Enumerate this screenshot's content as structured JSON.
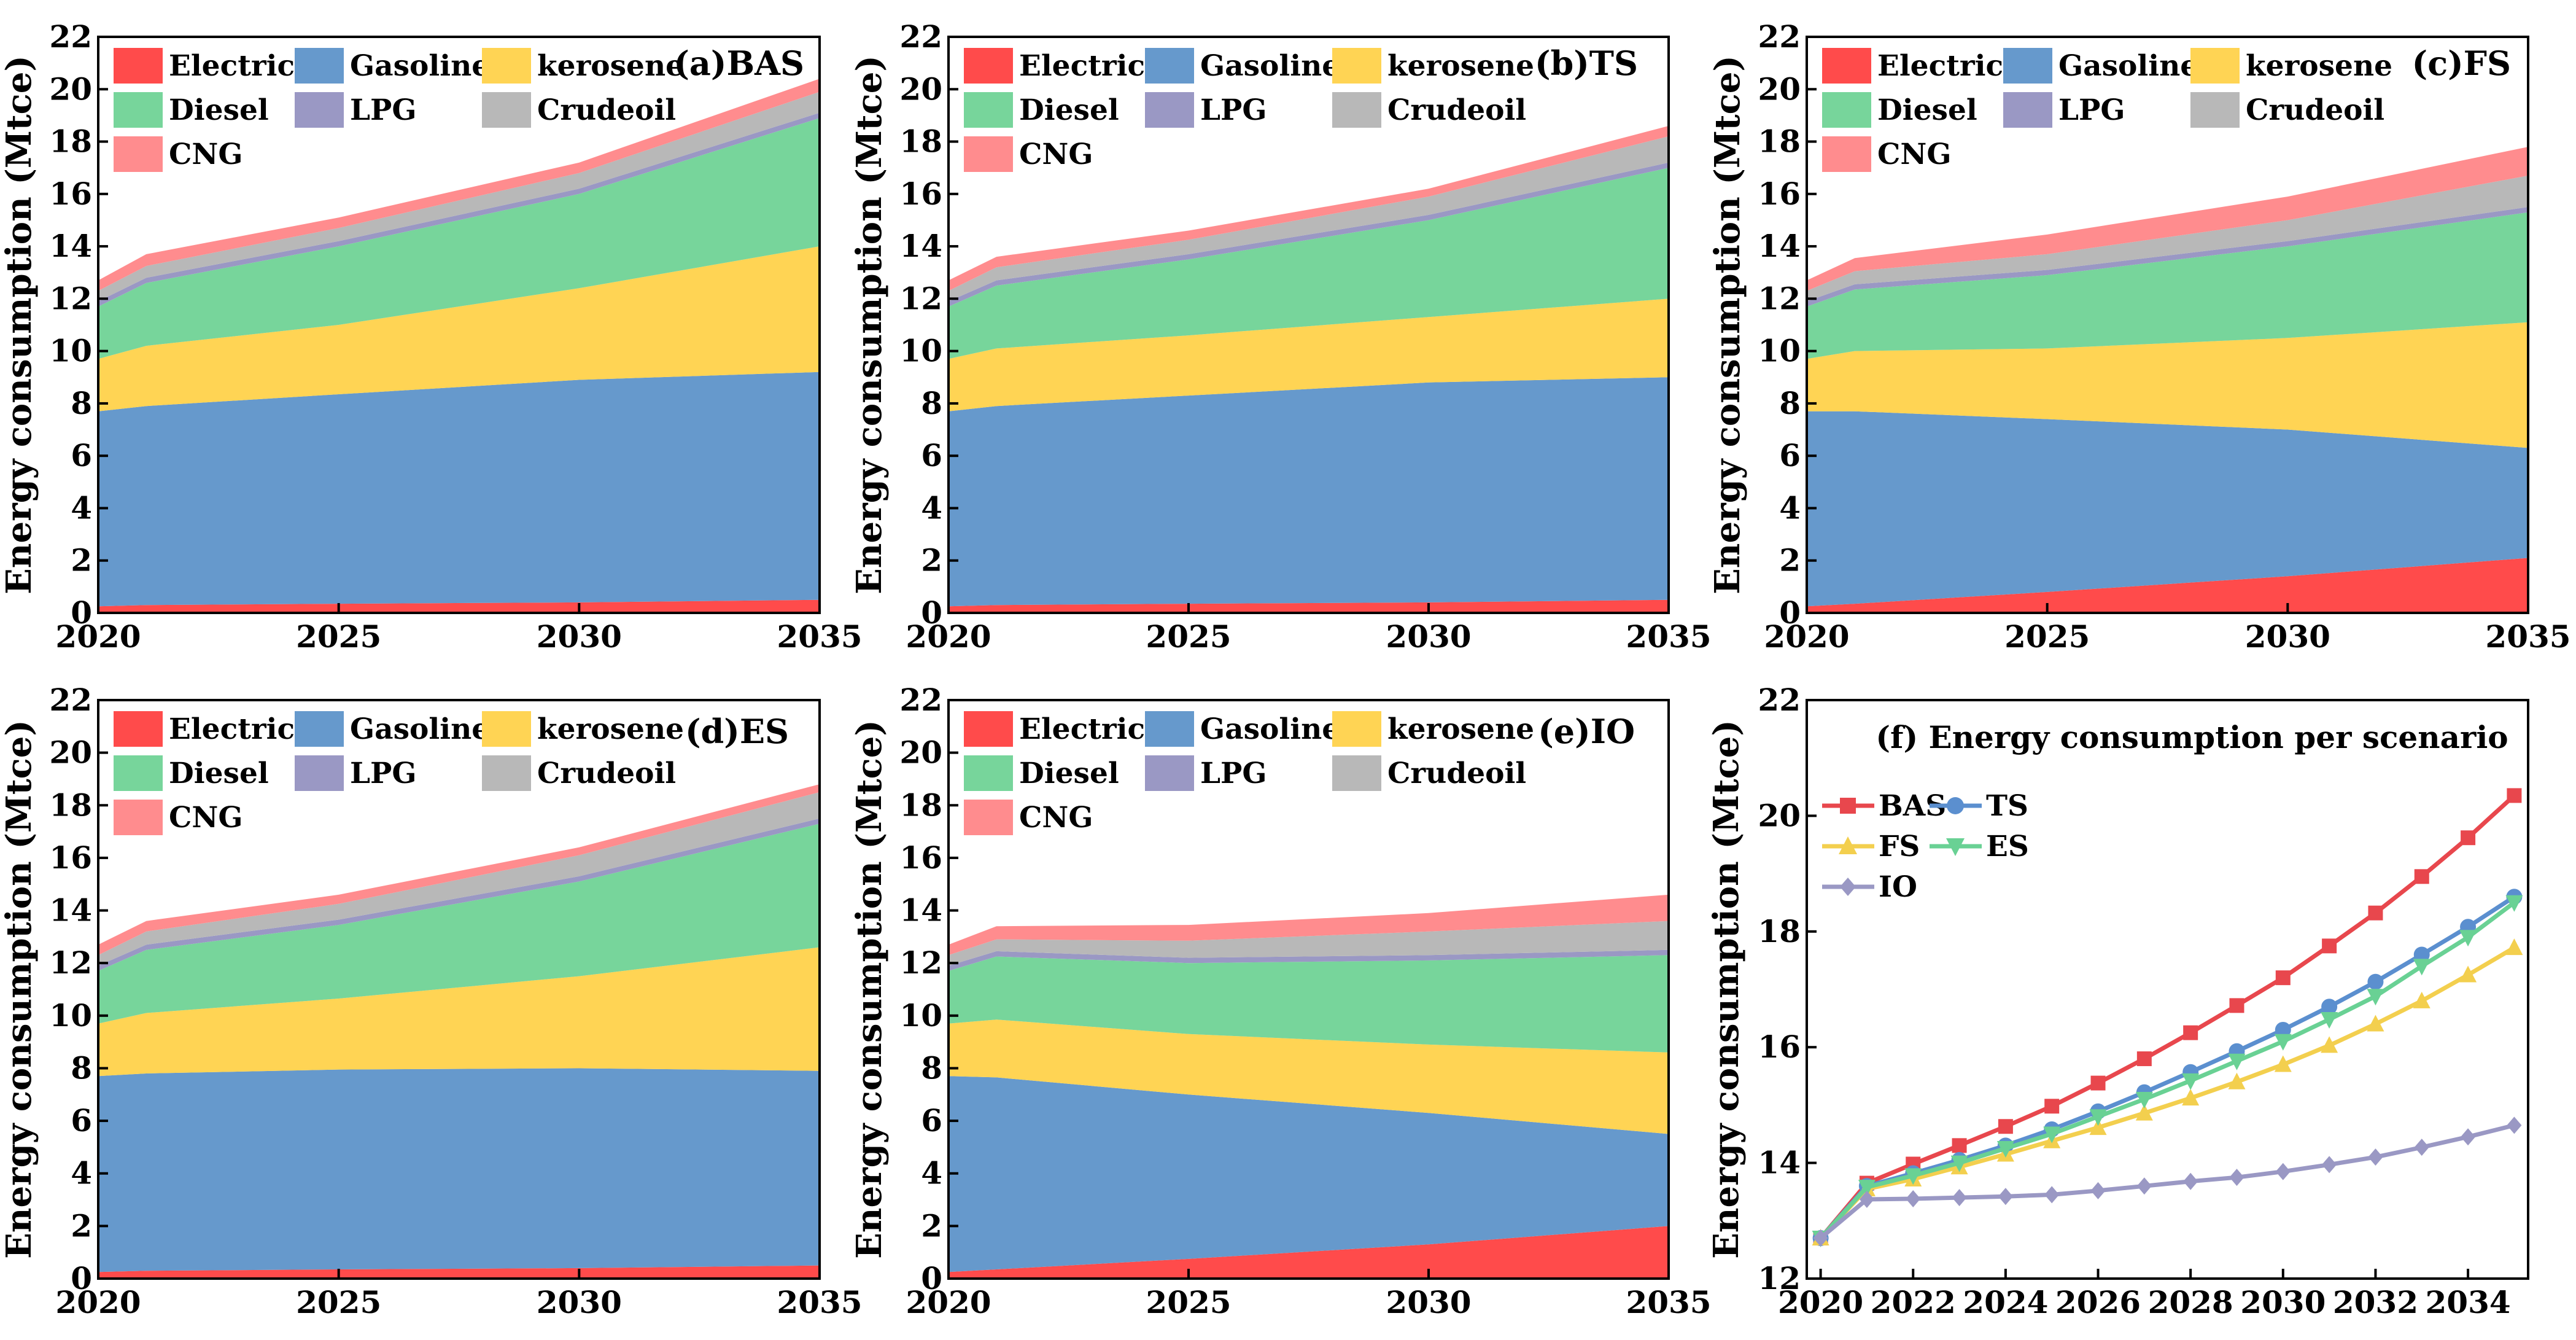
{
  "figure": {
    "colors": {
      "Electricity": "#ff4b4b",
      "Gasoline": "#6699cc",
      "kerosene": "#ffd454",
      "Diesel": "#77d59b",
      "LPG": "#9a98c4",
      "Crudeoil": "#b8b8b8",
      "CNG": "#ff8c8e"
    }
  },
  "chart_data": [
    {
      "id": "a",
      "type": "area",
      "stacked": true,
      "title": "(a)BAS",
      "ylabel": "Energy consumption (Mtce)",
      "xlabel": "",
      "xlim": [
        2020,
        2035
      ],
      "ylim": [
        0,
        22
      ],
      "xticks": [
        "2020",
        "2025",
        "2030",
        "2035"
      ],
      "yticks": [
        "0",
        "2",
        "4",
        "6",
        "8",
        "10",
        "12",
        "14",
        "16",
        "18",
        "20",
        "22"
      ],
      "legend_rows": [
        [
          "Electricity",
          "Gasoline",
          "kerosene"
        ],
        [
          "Diesel",
          "LPG",
          "Crudeoil"
        ],
        [
          "CNG"
        ]
      ],
      "x": [
        2020,
        2021,
        2025,
        2030,
        2035
      ],
      "series": [
        {
          "name": "Electricity",
          "values": [
            0.25,
            0.3,
            0.35,
            0.4,
            0.5
          ]
        },
        {
          "name": "Gasoline",
          "values": [
            7.45,
            7.6,
            8.0,
            8.5,
            8.7
          ]
        },
        {
          "name": "kerosene",
          "values": [
            2.0,
            2.3,
            2.65,
            3.5,
            4.8
          ]
        },
        {
          "name": "Diesel",
          "values": [
            2.0,
            2.4,
            3.0,
            3.6,
            4.9
          ]
        },
        {
          "name": "LPG",
          "values": [
            0.2,
            0.2,
            0.2,
            0.2,
            0.2
          ]
        },
        {
          "name": "Crudeoil",
          "values": [
            0.4,
            0.45,
            0.5,
            0.6,
            0.8
          ]
        },
        {
          "name": "CNG",
          "values": [
            0.4,
            0.45,
            0.4,
            0.4,
            0.5
          ]
        }
      ]
    },
    {
      "id": "b",
      "type": "area",
      "stacked": true,
      "title": "(b)TS",
      "ylabel": "Energy consumption (Mtce)",
      "xlabel": "",
      "xlim": [
        2020,
        2035
      ],
      "ylim": [
        0,
        22
      ],
      "xticks": [
        "2020",
        "2025",
        "2030",
        "2035"
      ],
      "yticks": [
        "0",
        "2",
        "4",
        "6",
        "8",
        "10",
        "12",
        "14",
        "16",
        "18",
        "20",
        "22"
      ],
      "legend_rows": [
        [
          "Electricity",
          "Gasoline",
          "kerosene"
        ],
        [
          "Diesel",
          "LPG",
          "Crudeoil"
        ],
        [
          "CNG"
        ]
      ],
      "x": [
        2020,
        2021,
        2025,
        2030,
        2035
      ],
      "series": [
        {
          "name": "Electricity",
          "values": [
            0.25,
            0.3,
            0.35,
            0.4,
            0.5
          ]
        },
        {
          "name": "Gasoline",
          "values": [
            7.45,
            7.6,
            7.95,
            8.4,
            8.5
          ]
        },
        {
          "name": "kerosene",
          "values": [
            2.0,
            2.2,
            2.3,
            2.5,
            3.0
          ]
        },
        {
          "name": "Diesel",
          "values": [
            2.0,
            2.4,
            2.9,
            3.7,
            5.0
          ]
        },
        {
          "name": "LPG",
          "values": [
            0.2,
            0.2,
            0.2,
            0.2,
            0.2
          ]
        },
        {
          "name": "Crudeoil",
          "values": [
            0.4,
            0.5,
            0.55,
            0.7,
            1.0
          ]
        },
        {
          "name": "CNG",
          "values": [
            0.4,
            0.4,
            0.35,
            0.3,
            0.4
          ]
        }
      ]
    },
    {
      "id": "c",
      "type": "area",
      "stacked": true,
      "title": "(c)FS",
      "ylabel": "Energy consumption (Mtce)",
      "xlabel": "",
      "xlim": [
        2020,
        2035
      ],
      "ylim": [
        0,
        22
      ],
      "xticks": [
        "2020",
        "2025",
        "2030",
        "2035"
      ],
      "yticks": [
        "0",
        "2",
        "4",
        "6",
        "8",
        "10",
        "12",
        "14",
        "16",
        "18",
        "20",
        "22"
      ],
      "legend_rows": [
        [
          "Electricity",
          "Gasoline",
          "kerosene"
        ],
        [
          "Diesel",
          "LPG",
          "Crudeoil"
        ],
        [
          "CNG"
        ]
      ],
      "x": [
        2020,
        2021,
        2025,
        2030,
        2035
      ],
      "series": [
        {
          "name": "Electricity",
          "values": [
            0.25,
            0.35,
            0.8,
            1.4,
            2.1
          ]
        },
        {
          "name": "Gasoline",
          "values": [
            7.45,
            7.35,
            6.6,
            5.6,
            4.2
          ]
        },
        {
          "name": "kerosene",
          "values": [
            2.0,
            2.3,
            2.7,
            3.5,
            4.8
          ]
        },
        {
          "name": "Diesel",
          "values": [
            2.0,
            2.35,
            2.8,
            3.5,
            4.2
          ]
        },
        {
          "name": "LPG",
          "values": [
            0.2,
            0.2,
            0.2,
            0.2,
            0.2
          ]
        },
        {
          "name": "Crudeoil",
          "values": [
            0.4,
            0.5,
            0.6,
            0.8,
            1.2
          ]
        },
        {
          "name": "CNG",
          "values": [
            0.4,
            0.5,
            0.75,
            0.9,
            1.1
          ]
        }
      ]
    },
    {
      "id": "d",
      "type": "area",
      "stacked": true,
      "title": "(d)ES",
      "ylabel": "Energy consumption (Mtce)",
      "xlabel": "",
      "xlim": [
        2020,
        2035
      ],
      "ylim": [
        0,
        22
      ],
      "xticks": [
        "2020",
        "2025",
        "2030",
        "2035"
      ],
      "yticks": [
        "0",
        "2",
        "4",
        "6",
        "8",
        "10",
        "12",
        "14",
        "16",
        "18",
        "20",
        "22"
      ],
      "legend_rows": [
        [
          "Electricity",
          "Gasoline",
          "kerosene"
        ],
        [
          "Diesel",
          "LPG",
          "Crudeoil"
        ],
        [
          "CNG"
        ]
      ],
      "x": [
        2020,
        2021,
        2025,
        2030,
        2035
      ],
      "series": [
        {
          "name": "Electricity",
          "values": [
            0.25,
            0.3,
            0.35,
            0.4,
            0.5
          ]
        },
        {
          "name": "Gasoline",
          "values": [
            7.45,
            7.5,
            7.6,
            7.6,
            7.4
          ]
        },
        {
          "name": "kerosene",
          "values": [
            2.0,
            2.3,
            2.7,
            3.5,
            4.7
          ]
        },
        {
          "name": "Diesel",
          "values": [
            2.0,
            2.4,
            2.8,
            3.6,
            4.7
          ]
        },
        {
          "name": "LPG",
          "values": [
            0.2,
            0.2,
            0.2,
            0.2,
            0.2
          ]
        },
        {
          "name": "Crudeoil",
          "values": [
            0.4,
            0.5,
            0.6,
            0.8,
            1.0
          ]
        },
        {
          "name": "CNG",
          "values": [
            0.4,
            0.4,
            0.35,
            0.3,
            0.3
          ]
        }
      ]
    },
    {
      "id": "e",
      "type": "area",
      "stacked": true,
      "title": "(e)IO",
      "ylabel": "Energy consumption (Mtce)",
      "xlabel": "",
      "xlim": [
        2020,
        2035
      ],
      "ylim": [
        0,
        22
      ],
      "xticks": [
        "2020",
        "2025",
        "2030",
        "2035"
      ],
      "yticks": [
        "0",
        "2",
        "4",
        "6",
        "8",
        "10",
        "12",
        "14",
        "16",
        "18",
        "20",
        "22"
      ],
      "legend_rows": [
        [
          "Electricity",
          "Gasoline",
          "kerosene"
        ],
        [
          "Diesel",
          "LPG",
          "Crudeoil"
        ],
        [
          "CNG"
        ]
      ],
      "x": [
        2020,
        2021,
        2025,
        2030,
        2035
      ],
      "series": [
        {
          "name": "Electricity",
          "values": [
            0.25,
            0.35,
            0.75,
            1.3,
            2.0
          ]
        },
        {
          "name": "Gasoline",
          "values": [
            7.45,
            7.3,
            6.25,
            5.0,
            3.5
          ]
        },
        {
          "name": "kerosene",
          "values": [
            2.0,
            2.2,
            2.3,
            2.6,
            3.1
          ]
        },
        {
          "name": "Diesel",
          "values": [
            2.0,
            2.4,
            2.7,
            3.2,
            3.7
          ]
        },
        {
          "name": "LPG",
          "values": [
            0.2,
            0.2,
            0.2,
            0.2,
            0.2
          ]
        },
        {
          "name": "Crudeoil",
          "values": [
            0.4,
            0.45,
            0.65,
            0.9,
            1.1
          ]
        },
        {
          "name": "CNG",
          "values": [
            0.4,
            0.5,
            0.6,
            0.7,
            1.0
          ]
        }
      ]
    },
    {
      "id": "f",
      "type": "line",
      "title": "(f) Energy consumption per scenario",
      "ylabel": "Energy consumption (Mtce)",
      "xlabel": "",
      "xlim": [
        2019.7,
        2035.3
      ],
      "ylim": [
        12,
        22
      ],
      "xticks": [
        "2020",
        "2022",
        "2024",
        "2026",
        "2028",
        "2030",
        "2032",
        "2034"
      ],
      "yticks": [
        "12",
        "14",
        "16",
        "18",
        "20",
        "22"
      ],
      "legend_rows": [
        [
          "BAS",
          "TS"
        ],
        [
          "FS",
          "ES"
        ],
        [
          "IO"
        ]
      ],
      "x": [
        2020,
        2021,
        2022,
        2023,
        2024,
        2025,
        2026,
        2027,
        2028,
        2029,
        2030,
        2031,
        2032,
        2033,
        2034,
        2035
      ],
      "series": [
        {
          "name": "BAS",
          "color": "#e8474d",
          "marker": "square",
          "values": [
            12.7,
            13.65,
            13.98,
            14.3,
            14.63,
            14.98,
            15.38,
            15.8,
            16.25,
            16.72,
            17.2,
            17.75,
            18.32,
            18.95,
            19.62,
            20.35
          ]
        },
        {
          "name": "TS",
          "color": "#5b8fcf",
          "marker": "circle",
          "values": [
            12.7,
            13.6,
            13.82,
            14.05,
            14.3,
            14.58,
            14.89,
            15.22,
            15.57,
            15.93,
            16.3,
            16.7,
            17.13,
            17.6,
            18.08,
            18.6
          ]
        },
        {
          "name": "FS",
          "color": "#f3cf4e",
          "marker": "triangle-up",
          "values": [
            12.7,
            13.55,
            13.72,
            13.93,
            14.15,
            14.38,
            14.61,
            14.86,
            15.12,
            15.4,
            15.7,
            16.03,
            16.4,
            16.8,
            17.25,
            17.72
          ]
        },
        {
          "name": "ES",
          "color": "#69d194",
          "marker": "triangle-down",
          "values": [
            12.7,
            13.58,
            13.78,
            14.0,
            14.25,
            14.5,
            14.8,
            15.1,
            15.42,
            15.76,
            16.1,
            16.48,
            16.88,
            17.4,
            17.9,
            18.5
          ]
        },
        {
          "name": "IO",
          "color": "#9a98c4",
          "marker": "diamond",
          "values": [
            12.7,
            13.37,
            13.38,
            13.4,
            13.42,
            13.45,
            13.52,
            13.6,
            13.68,
            13.75,
            13.85,
            13.97,
            14.1,
            14.27,
            14.45,
            14.65
          ]
        }
      ]
    }
  ]
}
